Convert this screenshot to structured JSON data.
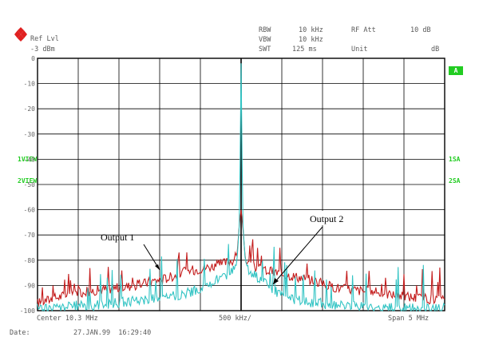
{
  "header": {
    "ref_label": "Ref Lvl",
    "ref_value": "-3 dBm",
    "rbw_label": "RBW",
    "rbw_value": "10 kHz",
    "vbw_label": "VBW",
    "vbw_value": "10 kHz",
    "swt_label": "SWT",
    "swt_value": "125 ms",
    "rfatt_label": "RF Att",
    "rfatt_value": "10 dB",
    "unit_label": "Unit",
    "unit_value": "dB"
  },
  "left_tags": [
    "1VIEW",
    "2VIEW"
  ],
  "right_tags": [
    "1SA",
    "2SA"
  ],
  "right_badge": "A",
  "footer": {
    "center": "Center 10.3 MHz",
    "div": "500 kHz/",
    "span": "Span 5 MHz",
    "date_label": "Date:",
    "date_value": "27.JAN.99  16:29:40"
  },
  "colors": {
    "trace1": "#c41e1e",
    "trace2": "#33c4c4",
    "grid": "#000000",
    "labels": "#22cc22"
  },
  "chart_data": {
    "type": "line",
    "title": "",
    "xlabel": "",
    "ylabel": "",
    "xlim": [
      7.8,
      12.8
    ],
    "ylim": [
      -100,
      0
    ],
    "yticks": [
      0,
      -10,
      -20,
      -30,
      -40,
      -50,
      -60,
      -70,
      -80,
      -90,
      -100
    ],
    "grid": true,
    "series": [
      {
        "name": "Output 1",
        "color": "#c41e1e",
        "x": [
          7.8,
          8.0,
          8.25,
          8.5,
          8.75,
          9.0,
          9.25,
          9.4,
          9.55,
          9.7,
          9.85,
          10.0,
          10.1,
          10.2,
          10.25,
          10.28,
          10.3,
          10.32,
          10.35,
          10.4,
          10.5,
          10.6,
          10.75,
          10.9,
          11.05,
          11.2,
          11.35,
          11.5,
          11.75,
          12.0,
          12.25,
          12.5,
          12.75,
          12.8
        ],
        "y": [
          -97,
          -95,
          -93,
          -92,
          -91,
          -90,
          -88,
          -87,
          -85,
          -84,
          -83,
          -82,
          -81,
          -80,
          -78,
          -65,
          -60,
          -66,
          -79,
          -82,
          -83,
          -84,
          -85,
          -86,
          -87,
          -88,
          -90,
          -91,
          -92,
          -93,
          -94,
          -95,
          -96,
          -96
        ]
      },
      {
        "name": "Output 2",
        "color": "#33c4c4",
        "x": [
          7.8,
          8.0,
          8.25,
          8.5,
          8.75,
          9.0,
          9.25,
          9.5,
          9.75,
          9.9,
          10.0,
          10.1,
          10.2,
          10.25,
          10.28,
          10.3,
          10.32,
          10.35,
          10.4,
          10.5,
          10.6,
          10.7,
          10.8,
          10.9,
          11.0,
          11.25,
          11.5,
          11.75,
          12.0,
          12.25,
          12.5,
          12.75,
          12.8
        ],
        "y": [
          -99,
          -99,
          -98,
          -98,
          -97,
          -96,
          -95,
          -94,
          -92,
          -90,
          -88,
          -86,
          -84,
          -80,
          -65,
          -2,
          -64,
          -80,
          -84,
          -87,
          -89,
          -92,
          -94,
          -95,
          -96,
          -97,
          -98,
          -98,
          -99,
          -99,
          -99,
          -99,
          -99
        ]
      }
    ],
    "annotations": [
      {
        "text": "Output 1"
      },
      {
        "text": "Output 2"
      }
    ]
  }
}
